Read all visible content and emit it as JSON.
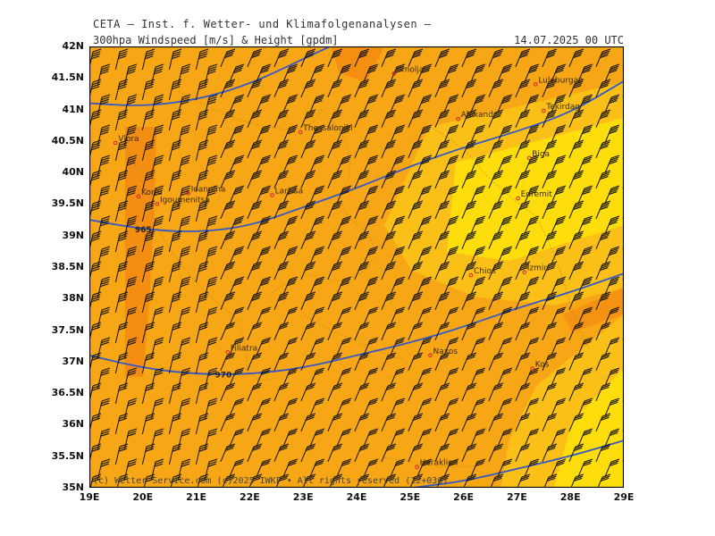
{
  "header": {
    "institute": "CETA — Inst. f. Wetter- und Klimafolgenanalysen —",
    "left_title": "300hpa Windspeed [m/s] & Height [gpdm]",
    "right_title": "14.07.2025 00 UTC"
  },
  "axes": {
    "lat_labels": [
      "42N",
      "41.5N",
      "41N",
      "40.5N",
      "40N",
      "39.5N",
      "39N",
      "38.5N",
      "38N",
      "37.5N",
      "37N",
      "36.5N",
      "36N",
      "35.5N",
      "35N"
    ],
    "lon_labels": [
      "19E",
      "20E",
      "21E",
      "22E",
      "23E",
      "24E",
      "25E",
      "26E",
      "27E",
      "28E",
      "29E"
    ]
  },
  "map": {
    "lon_range": [
      19,
      29
    ],
    "lat_range": [
      35,
      42
    ],
    "contours": [
      {
        "label": "965",
        "points": [
          [
            19,
            41.1
          ],
          [
            20,
            41.05
          ],
          [
            21,
            41.15
          ],
          [
            22,
            41.4
          ],
          [
            23,
            41.8
          ],
          [
            23.5,
            42
          ]
        ]
      },
      {
        "label": "965",
        "points": [
          [
            19,
            39.25
          ],
          [
            20,
            39.1
          ],
          [
            21,
            39.05
          ],
          [
            22,
            39.15
          ],
          [
            23,
            39.45
          ],
          [
            24,
            39.75
          ],
          [
            25,
            40.1
          ],
          [
            26,
            40.4
          ],
          [
            27,
            40.65
          ],
          [
            28,
            40.95
          ],
          [
            29,
            41.45
          ]
        ]
      },
      {
        "label": "970",
        "points": [
          [
            19,
            37.1
          ],
          [
            20,
            36.9
          ],
          [
            21,
            36.8
          ],
          [
            22,
            36.8
          ],
          [
            23,
            36.9
          ],
          [
            24,
            37.1
          ],
          [
            25,
            37.3
          ],
          [
            26,
            37.55
          ],
          [
            27,
            37.85
          ],
          [
            28,
            38.1
          ],
          [
            29,
            38.4
          ]
        ]
      },
      {
        "label": "",
        "points": [
          [
            24.5,
            34.9
          ],
          [
            25,
            35
          ],
          [
            26,
            35.1
          ],
          [
            27,
            35.3
          ],
          [
            28,
            35.5
          ],
          [
            29,
            35.75
          ]
        ]
      }
    ],
    "contour_labels": [
      {
        "text": "965",
        "lon": 19.85,
        "lat": 39.05
      },
      {
        "text": "970",
        "lon": 21.35,
        "lat": 36.75
      }
    ],
    "cities": [
      {
        "name": "Smoljan",
        "lon": 24.7,
        "lat": 41.57
      },
      {
        "name": "Luleburgaz",
        "lon": 27.35,
        "lat": 41.4
      },
      {
        "name": "Tekirdag",
        "lon": 27.5,
        "lat": 40.98
      },
      {
        "name": "Alexandr.",
        "lon": 25.9,
        "lat": 40.85
      },
      {
        "name": "Thessaloniki",
        "lon": 22.95,
        "lat": 40.64
      },
      {
        "name": "Vlora",
        "lon": 19.49,
        "lat": 40.47
      },
      {
        "name": "Biga",
        "lon": 27.23,
        "lat": 40.23
      },
      {
        "name": "Korfu",
        "lon": 19.92,
        "lat": 39.62
      },
      {
        "name": "Ioannina",
        "lon": 20.85,
        "lat": 39.67
      },
      {
        "name": "Igoumenitsa",
        "lon": 20.27,
        "lat": 39.5
      },
      {
        "name": "Larissa",
        "lon": 22.42,
        "lat": 39.64
      },
      {
        "name": "Edremit",
        "lon": 27.02,
        "lat": 39.59
      },
      {
        "name": "Chios",
        "lon": 26.14,
        "lat": 38.37
      },
      {
        "name": "Izmir",
        "lon": 27.14,
        "lat": 38.42
      },
      {
        "name": "Filiatra",
        "lon": 21.59,
        "lat": 37.15
      },
      {
        "name": "Naxos",
        "lon": 25.38,
        "lat": 37.1
      },
      {
        "name": "Kos",
        "lon": 27.29,
        "lat": 36.89
      },
      {
        "name": "Heraklion",
        "lon": 25.13,
        "lat": 35.33
      }
    ],
    "colors": {
      "deep_orange": "#f28a12",
      "orange": "#f7a615",
      "light_orange": "#fbc017",
      "yellow": "#fedd0c",
      "contour": "#3458c8",
      "barb": "#111111",
      "coast": "#b8860b"
    }
  },
  "credit": "(c) Wetter-Service.com (c)2025 IWKF • All rights reserved (12+036)"
}
